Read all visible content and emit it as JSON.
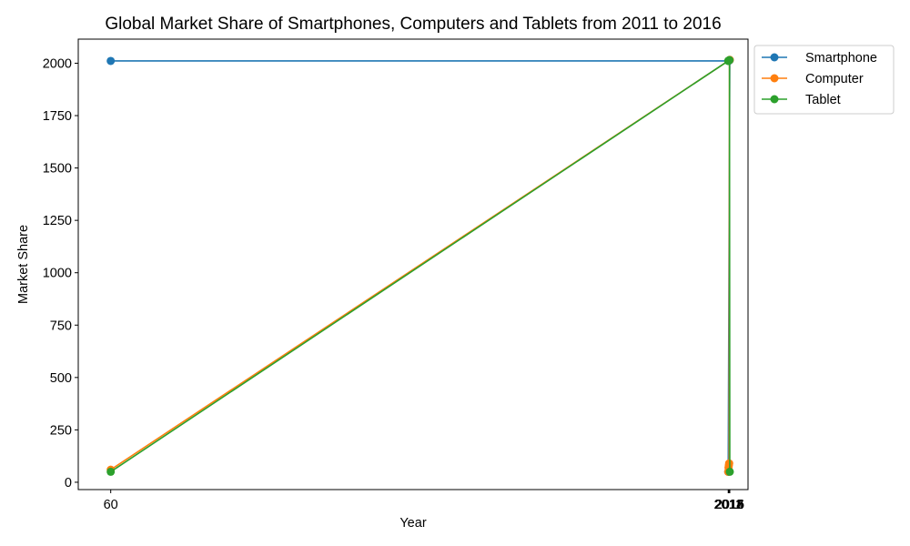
{
  "chart_data": {
    "type": "line",
    "title": "Global Market Share of Smartphones, Computers and Tablets from 2011 to 2016",
    "xlabel": "Year",
    "ylabel": "Market Share",
    "xlim": [
      -42.6,
      2073.6
    ],
    "ylim": [
      -35,
      2115
    ],
    "xticks": [
      60,
      2011,
      2012,
      2013,
      2014,
      2015,
      2016
    ],
    "xtick_labels": [
      "60",
      "2011",
      "2012",
      "2013",
      "2014",
      "2015",
      "2016"
    ],
    "yticks": [
      0,
      250,
      500,
      750,
      1000,
      1250,
      1500,
      1750,
      2000
    ],
    "grid": false,
    "legend_position": "outside-top-right",
    "series": [
      {
        "name": "Smartphone",
        "color": "#1f77b4",
        "x": [
          60,
          2012,
          2013,
          2014,
          2015,
          2016,
          2011
        ],
        "y": [
          2011,
          2011,
          2012,
          2013,
          2014,
          2015,
          50
        ]
      },
      {
        "name": "Computer",
        "color": "#ff7f0e",
        "x": [
          2011,
          2012,
          2013,
          2014,
          2015,
          2016,
          60
        ],
        "y": [
          50,
          70,
          80,
          90,
          2015,
          2016,
          60
        ]
      },
      {
        "name": "Tablet",
        "color": "#2ca02c",
        "x": [
          60,
          2011,
          2012,
          2013,
          2014,
          2015,
          2016
        ],
        "y": [
          50,
          2011,
          2012,
          2013,
          2014,
          2015,
          50
        ]
      }
    ]
  }
}
